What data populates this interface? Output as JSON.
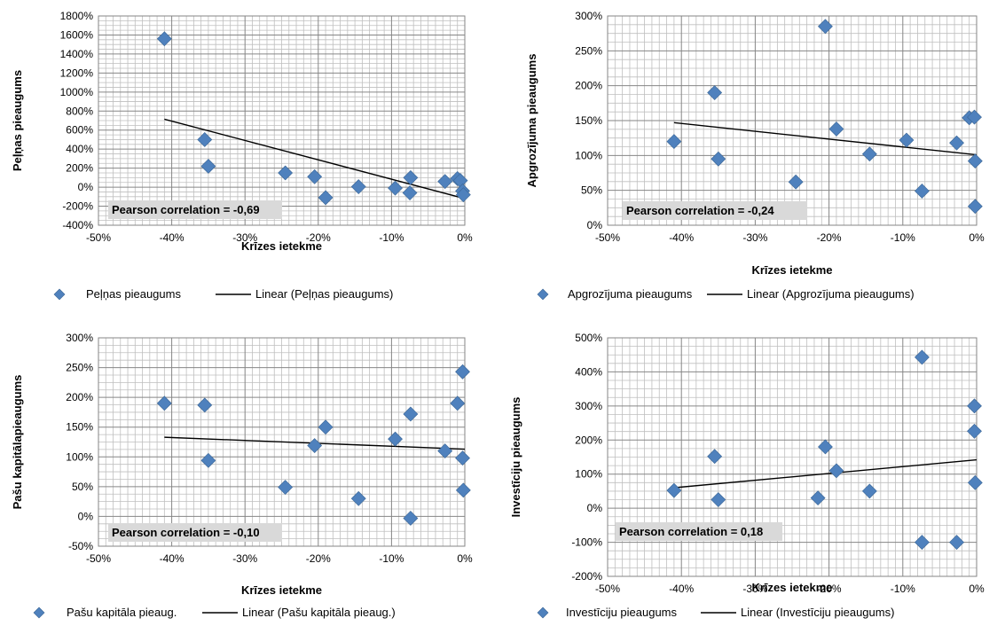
{
  "colors": {
    "marker": "#4f81bd",
    "marker_stroke": "#3a6594",
    "trendline": "#000000",
    "grid_major": "#868686",
    "grid_minor": "#bfbfbf",
    "annotation_bg": "#d9d9d9"
  },
  "chart_data": [
    {
      "type": "scatter",
      "title": "",
      "xlabel": "Krīzes ietekme",
      "ylabel": "Peļņas pieaugums",
      "xlim": [
        -0.5,
        0
      ],
      "ylim": [
        -400,
        1800
      ],
      "x_ticks": [
        -0.5,
        -0.4,
        -0.3,
        -0.2,
        -0.1,
        0
      ],
      "x_tick_labels": [
        "-50%",
        "-40%",
        "-30%",
        "-20%",
        "-10%",
        "0%"
      ],
      "y_ticks": [
        -400,
        -200,
        0,
        200,
        400,
        600,
        800,
        1000,
        1200,
        1400,
        1600,
        1800
      ],
      "y_tick_labels": [
        "-400%",
        "-200%",
        "0%",
        "200%",
        "400%",
        "600%",
        "800%",
        "1000%",
        "1200%",
        "1400%",
        "1600%",
        "1800%"
      ],
      "grid": true,
      "legend_position": "bottom",
      "series": [
        {
          "name": "Peļņas pieaugums",
          "x": [
            -0.41,
            -0.355,
            -0.35,
            -0.245,
            -0.205,
            -0.19,
            -0.145,
            -0.095,
            -0.075,
            -0.074,
            -0.027,
            -0.01,
            -0.006,
            -0.003,
            -0.002
          ],
          "y": [
            1560,
            500,
            220,
            150,
            110,
            -110,
            5,
            -10,
            -60,
            100,
            60,
            90,
            70,
            -40,
            -80
          ]
        }
      ],
      "trendline": {
        "name": "Linear (Peļņas pieaugums)",
        "x": [
          -0.41,
          0
        ],
        "y": [
          715,
          -120
        ]
      },
      "annotation": "Pearson correlation = -0,69"
    },
    {
      "type": "scatter",
      "title": "",
      "xlabel": "Krīzes ietekme",
      "ylabel": "Apgrozījuma pieaugums",
      "xlim": [
        -0.5,
        0
      ],
      "ylim": [
        0,
        300
      ],
      "x_ticks": [
        -0.5,
        -0.4,
        -0.3,
        -0.2,
        -0.1,
        0
      ],
      "x_tick_labels": [
        "-50%",
        "-40%",
        "-30%",
        "-20%",
        "-10%",
        "0%"
      ],
      "y_ticks": [
        0,
        50,
        100,
        150,
        200,
        250,
        300
      ],
      "y_tick_labels": [
        "0%",
        "50%",
        "100%",
        "150%",
        "200%",
        "250%",
        "300%"
      ],
      "grid": true,
      "legend_position": "bottom",
      "series": [
        {
          "name": "Apgrozījuma pieaugums",
          "x": [
            -0.41,
            -0.355,
            -0.35,
            -0.245,
            -0.205,
            -0.19,
            -0.145,
            -0.095,
            -0.074,
            -0.027,
            -0.01,
            -0.003,
            -0.002,
            -0.002
          ],
          "y": [
            120,
            190,
            95,
            62,
            285,
            138,
            102,
            122,
            49,
            118,
            154,
            155,
            92,
            27
          ]
        }
      ],
      "trendline": {
        "name": "Linear (Apgrozījuma pieaugums)",
        "x": [
          -0.41,
          0
        ],
        "y": [
          147,
          101
        ]
      },
      "annotation": "Pearson correlation = -0,24"
    },
    {
      "type": "scatter",
      "title": "",
      "xlabel": "Krīzes ietekme",
      "ylabel": "Pašu kapitālapieaugums",
      "xlim": [
        -0.5,
        0
      ],
      "ylim": [
        -50,
        300
      ],
      "x_ticks": [
        -0.5,
        -0.4,
        -0.3,
        -0.2,
        -0.1,
        0
      ],
      "x_tick_labels": [
        "-50%",
        "-40%",
        "-30%",
        "-20%",
        "-10%",
        "0%"
      ],
      "y_ticks": [
        -50,
        0,
        50,
        100,
        150,
        200,
        250,
        300
      ],
      "y_tick_labels": [
        "-50%",
        "0%",
        "50%",
        "100%",
        "150%",
        "200%",
        "250%",
        "300%"
      ],
      "grid": true,
      "legend_position": "bottom",
      "series": [
        {
          "name": "Pašu kapitāla pieaug.",
          "x": [
            -0.41,
            -0.355,
            -0.35,
            -0.245,
            -0.205,
            -0.19,
            -0.145,
            -0.095,
            -0.074,
            -0.074,
            -0.027,
            -0.01,
            -0.003,
            -0.003,
            -0.002
          ],
          "y": [
            190,
            187,
            94,
            49,
            119,
            150,
            30,
            130,
            172,
            -3,
            110,
            190,
            243,
            98,
            44
          ]
        }
      ],
      "trendline": {
        "name": "Linear (Pašu kapitāla pieaug.)",
        "x": [
          -0.41,
          0
        ],
        "y": [
          133,
          113
        ]
      },
      "annotation": "Pearson correlation = -0,10"
    },
    {
      "type": "scatter",
      "title": "",
      "xlabel": "Krīzes ietekme",
      "ylabel": "Investīciju pieaugums",
      "xlim": [
        -0.5,
        0
      ],
      "ylim": [
        -200,
        500
      ],
      "x_ticks": [
        -0.5,
        -0.4,
        -0.3,
        -0.2,
        -0.1,
        0
      ],
      "x_tick_labels": [
        "-50%",
        "-40%",
        "-30%",
        "-20%",
        "-10%",
        "0%"
      ],
      "y_ticks": [
        -200,
        -100,
        0,
        100,
        200,
        300,
        400,
        500
      ],
      "y_tick_labels": [
        "-200%",
        "-100%",
        "0%",
        "100%",
        "200%",
        "300%",
        "400%",
        "500%"
      ],
      "grid": true,
      "legend_position": "bottom",
      "series": [
        {
          "name": "Investīciju pieaugums",
          "x": [
            -0.41,
            -0.355,
            -0.35,
            -0.215,
            -0.205,
            -0.19,
            -0.145,
            -0.074,
            -0.074,
            -0.027,
            -0.003,
            -0.003,
            -0.002
          ],
          "y": [
            52,
            152,
            25,
            30,
            180,
            110,
            50,
            443,
            -100,
            -100,
            300,
            226,
            75
          ]
        }
      ],
      "trendline": {
        "name": "Linear (Investīciju pieaugums)",
        "x": [
          -0.41,
          0
        ],
        "y": [
          60,
          142
        ]
      },
      "annotation": "Pearson correlation = 0,18"
    }
  ]
}
